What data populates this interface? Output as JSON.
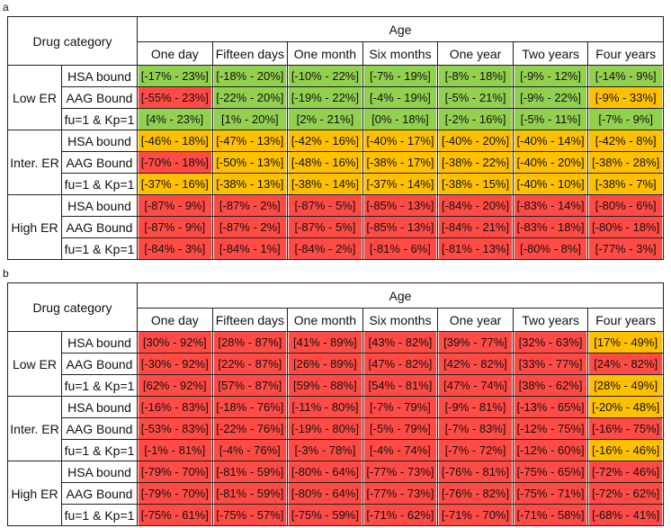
{
  "colors": {
    "green": "#92d050",
    "orange": "#ffc000",
    "red": "#ff4b45"
  },
  "chart_data": [
    {
      "type": "table",
      "panel_label": "a",
      "corner_header": "Drug category",
      "age_header": "Age",
      "columns": [
        "One day",
        "Fifteen days",
        "One month",
        "Six months",
        "One year",
        "Two years",
        "Four years"
      ],
      "row_groups": [
        {
          "name": "Low ER",
          "rows": [
            {
              "label": "HSA bound",
              "values": [
                "[-17% - 23%]",
                "[-18% - 20%]",
                "[-10% - 22%]",
                "[-7% - 19%]",
                "[-8% - 18%]",
                "[-9% - 12%]",
                "[-14% - 9%]"
              ],
              "colors": [
                "green",
                "green",
                "green",
                "green",
                "green",
                "green",
                "green"
              ]
            },
            {
              "label": "AAG Bound",
              "values": [
                "[-55% - 23%]",
                "[-22% - 20%]",
                "[-19% - 22%]",
                "[-4% - 19%]",
                "[-5% - 21%]",
                "[-9% - 22%]",
                "[-9% - 33%]"
              ],
              "colors": [
                "red",
                "green",
                "green",
                "green",
                "green",
                "green",
                "orange"
              ]
            },
            {
              "label": "fu=1 & Kp=1",
              "values": [
                "[4% - 23%]",
                "[1% - 20%]",
                "[2% - 21%]",
                "[0% - 18%]",
                "[-2% - 16%]",
                "[-5% - 11%]",
                "[-7% - 9%]"
              ],
              "colors": [
                "green",
                "green",
                "green",
                "green",
                "green",
                "green",
                "green"
              ]
            }
          ]
        },
        {
          "name": "Inter. ER",
          "rows": [
            {
              "label": "HSA bound",
              "values": [
                "[-46% - 18%]",
                "[-47% - 13%]",
                "[-42% - 16%]",
                "[-40% - 17%]",
                "[-40% - 20%]",
                "[-40% - 14%]",
                "[-42% - 8%]"
              ],
              "colors": [
                "orange",
                "orange",
                "orange",
                "orange",
                "orange",
                "orange",
                "orange"
              ]
            },
            {
              "label": "AAG Bound",
              "values": [
                "[-70% - 18%]",
                "[-50% - 13%]",
                "[-48% - 16%]",
                "[-38% - 17%]",
                "[-38% - 22%]",
                "[-40% - 20%]",
                "[-38% - 28%]"
              ],
              "colors": [
                "red",
                "orange",
                "orange",
                "orange",
                "orange",
                "orange",
                "orange"
              ]
            },
            {
              "label": "fu=1 & Kp=1",
              "values": [
                "[-37% - 16%]",
                "[-38% - 13%]",
                "[-38% - 14%]",
                "[-37% - 14%]",
                "[-38% - 15%]",
                "[-40% - 10%]",
                "[-38% - 7%]"
              ],
              "colors": [
                "orange",
                "orange",
                "orange",
                "orange",
                "orange",
                "orange",
                "orange"
              ]
            }
          ]
        },
        {
          "name": "High ER",
          "rows": [
            {
              "label": "HSA bound",
              "values": [
                "[-87% - 9%]",
                "[-87% - 2%]",
                "[-87% - 5%]",
                "[-85% - 13%]",
                "[-84% - 20%]",
                "[-83% - 14%]",
                "[-80% - 6%]"
              ],
              "colors": [
                "red",
                "red",
                "red",
                "red",
                "red",
                "red",
                "red"
              ]
            },
            {
              "label": "AAG Bound",
              "values": [
                "[-87% - 9%]",
                "[-87% - 2%]",
                "[-87% - 5%]",
                "[-85% - 13%]",
                "[-84% - 21%]",
                "[-83% - 18%]",
                "[-80% - 18%]"
              ],
              "colors": [
                "red",
                "red",
                "red",
                "red",
                "red",
                "red",
                "red"
              ]
            },
            {
              "label": "fu=1 & Kp=1",
              "values": [
                "[-84% - 3%]",
                "[-84% - 1%]",
                "[-84% - 2%]",
                "[-81% - 6%]",
                "[-81% - 13%]",
                "[-80% - 8%]",
                "[-77% - 3%]"
              ],
              "colors": [
                "red",
                "red",
                "red",
                "red",
                "red",
                "red",
                "red"
              ]
            }
          ]
        }
      ]
    },
    {
      "type": "table",
      "panel_label": "b",
      "corner_header": "Drug category",
      "age_header": "Age",
      "columns": [
        "One day",
        "Fifteen days",
        "One month",
        "Six months",
        "One year",
        "Two years",
        "Four years"
      ],
      "row_groups": [
        {
          "name": "Low ER",
          "rows": [
            {
              "label": "HSA bound",
              "values": [
                "[30% - 92%]",
                "[28% - 87%]",
                "[41% - 89%]",
                "[43% - 82%]",
                "[39% - 77%]",
                "[32% - 63%]",
                "[17% - 49%]"
              ],
              "colors": [
                "red",
                "red",
                "red",
                "red",
                "red",
                "red",
                "orange"
              ]
            },
            {
              "label": "AAG Bound",
              "values": [
                "[-30% - 92%]",
                "[22% - 87%]",
                "[26% - 89%]",
                "[47% - 82%]",
                "[42% - 82%]",
                "[33% - 77%]",
                "[24% - 82%]"
              ],
              "colors": [
                "red",
                "red",
                "red",
                "red",
                "red",
                "red",
                "red"
              ]
            },
            {
              "label": "fu=1 & Kp=1",
              "values": [
                "[62% - 92%]",
                "[57% - 87%]",
                "[59% - 88%]",
                "[54% - 81%]",
                "[47% - 74%]",
                "[38% - 62%]",
                "[28% - 49%]"
              ],
              "colors": [
                "red",
                "red",
                "red",
                "red",
                "red",
                "red",
                "orange"
              ]
            }
          ]
        },
        {
          "name": "Inter. ER",
          "rows": [
            {
              "label": "HSA bound",
              "values": [
                "[-16% - 83%]",
                "[-18% - 76%]",
                "[-11% - 80%]",
                "[-7% - 79%]",
                "[-9% - 81%]",
                "[-13% - 65%]",
                "[-20% - 48%]"
              ],
              "colors": [
                "red",
                "red",
                "red",
                "red",
                "red",
                "red",
                "orange"
              ]
            },
            {
              "label": "AAG Bound",
              "values": [
                "[-53% - 83%]",
                "[-22% - 76%]",
                "[-19% - 80%]",
                "[-5% - 79%]",
                "[-7% - 83%]",
                "[-12% - 75%]",
                "[-16% - 75%]"
              ],
              "colors": [
                "red",
                "red",
                "red",
                "red",
                "red",
                "red",
                "red"
              ]
            },
            {
              "label": "fu=1 & Kp=1",
              "values": [
                "[-1% - 81%]",
                "[-4% - 76%]",
                "[-3% - 78%]",
                "[-4% - 74%]",
                "[-7% - 72%]",
                "[-12% - 60%]",
                "[-16% - 46%]"
              ],
              "colors": [
                "red",
                "red",
                "red",
                "red",
                "red",
                "red",
                "orange"
              ]
            }
          ]
        },
        {
          "name": "High ER",
          "rows": [
            {
              "label": "HSA bound",
              "values": [
                "[-79% - 70%]",
                "[-81% - 59%]",
                "[-80% - 64%]",
                "[-77% - 73%]",
                "[-76% - 81%]",
                "[-75% - 65%]",
                "[-72% - 46%]"
              ],
              "colors": [
                "red",
                "red",
                "red",
                "red",
                "red",
                "red",
                "red"
              ]
            },
            {
              "label": "AAG Bound",
              "values": [
                "[-79% - 70%]",
                "[-81% - 59%]",
                "[-80% - 64%]",
                "[-77% - 73%]",
                "[-76% - 82%]",
                "[-75% - 71%]",
                "[-72% - 62%]"
              ],
              "colors": [
                "red",
                "red",
                "red",
                "red",
                "red",
                "red",
                "red"
              ]
            },
            {
              "label": "fu=1 & Kp=1",
              "values": [
                "[-75% - 61%]",
                "[-75% - 57%]",
                "[-75% - 59%]",
                "[-71% - 62%]",
                "[-71% - 70%]",
                "[-71% - 58%]",
                "[-68% - 41%]"
              ],
              "colors": [
                "red",
                "red",
                "red",
                "red",
                "red",
                "red",
                "red"
              ]
            }
          ]
        }
      ]
    }
  ]
}
